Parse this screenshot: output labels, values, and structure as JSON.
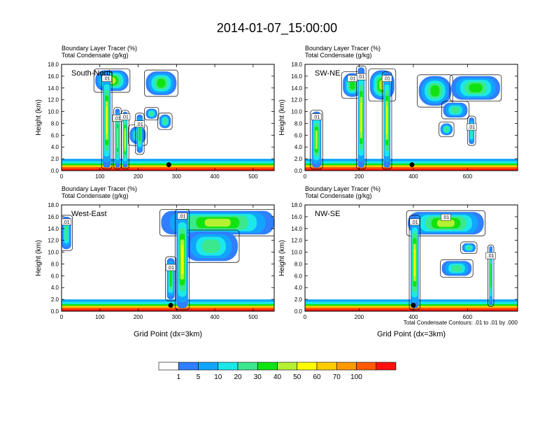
{
  "figure": {
    "title": "2014-01-07_15:00:00",
    "footnote": "Total Condensate Contours: .01 to .01 by .000",
    "label_bar_values": [
      "1",
      "5",
      "10",
      "20",
      "30",
      "40",
      "50",
      "60",
      "70",
      "100"
    ],
    "label_bar_colors": [
      "#ffffff",
      "#2f7fff",
      "#11a5ff",
      "#1ce8e8",
      "#3ce88e",
      "#11e311",
      "#b5f032",
      "#fffb00",
      "#ffcc00",
      "#ff9a00",
      "#ff5a00",
      "#ff1010"
    ]
  },
  "chart_data": [
    {
      "type": "heatmap",
      "panel_label": "South-North",
      "header_line1": "Boundary Layer Tracer    (%)",
      "header_line2": "Total Condensate    (g/kg)",
      "ylabel": "Height (km)",
      "xlabel": "",
      "xlim": [
        0,
        555
      ],
      "ylim": [
        0,
        18
      ],
      "xticks": [
        "0",
        "100",
        "200",
        "300",
        "400",
        "500"
      ],
      "yticks": [
        "0.0",
        "2.0",
        "4.0",
        "6.0",
        "8.0",
        "10.0",
        "12.0",
        "14.0",
        "16.0",
        "18.0"
      ],
      "contour_labels": [
        ".01",
        ".01",
        ".01",
        ".01"
      ],
      "marker_x": 280,
      "marker_y": 1.0,
      "columns": [
        {
          "x": [
            108,
            128
          ],
          "z": [
            0.5,
            16.5
          ],
          "level": 6
        },
        {
          "x": [
            140,
            152
          ],
          "z": [
            0.5,
            10.5
          ],
          "level": 5
        },
        {
          "x": [
            160,
            172
          ],
          "z": [
            0.5,
            10.0
          ],
          "level": 6
        },
        {
          "x": [
            196,
            212
          ],
          "z": [
            3.0,
            9.5
          ],
          "level": 4
        }
      ],
      "anvils": [
        {
          "x": [
            88,
            175
          ],
          "z": [
            13.5,
            17.0
          ],
          "level": 5
        },
        {
          "x": [
            220,
            300
          ],
          "z": [
            12.8,
            16.8
          ],
          "level": 4
        },
        {
          "x": [
            255,
            285
          ],
          "z": [
            7.2,
            9.5
          ],
          "level": 3
        },
        {
          "x": [
            220,
            250
          ],
          "z": [
            8.8,
            10.5
          ],
          "level": 3
        },
        {
          "x": [
            178,
            220
          ],
          "z": [
            4.5,
            7.5
          ],
          "level": 3
        }
      ]
    },
    {
      "type": "heatmap",
      "panel_label": "SW-NE",
      "header_line1": "Boundary Layer Tracer    (%)",
      "header_line2": "Total Condensate    (g/kg)",
      "ylabel": "Height (km)",
      "xlabel": "",
      "xlim": [
        0,
        785
      ],
      "ylim": [
        0,
        18
      ],
      "xticks": [
        "0",
        "200",
        "400",
        "600"
      ],
      "yticks": [
        "0.0",
        "2.0",
        "4.0",
        "6.0",
        "8.0",
        "10.0",
        "12.0",
        "14.0",
        "16.0",
        "18.0"
      ],
      "contour_labels": [
        ".01",
        ".01",
        ".01",
        ".01",
        ".01"
      ],
      "marker_x": 395,
      "marker_y": 1.0,
      "columns": [
        {
          "x": [
            25,
            60
          ],
          "z": [
            0.5,
            10.0
          ],
          "level": 5
        },
        {
          "x": [
            195,
            220
          ],
          "z": [
            0.5,
            17.5
          ],
          "level": 6
        },
        {
          "x": [
            290,
            315
          ],
          "z": [
            0.5,
            16.5
          ],
          "level": 6
        },
        {
          "x": [
            605,
            625
          ],
          "z": [
            4.5,
            9.0
          ],
          "level": 3
        }
      ],
      "anvils": [
        {
          "x": [
            140,
            210
          ],
          "z": [
            12.5,
            16.5
          ],
          "level": 4
        },
        {
          "x": [
            240,
            330
          ],
          "z": [
            12.0,
            17.0
          ],
          "level": 5
        },
        {
          "x": [
            420,
            540
          ],
          "z": [
            11.0,
            16.0
          ],
          "level": 4
        },
        {
          "x": [
            540,
            720
          ],
          "z": [
            12.0,
            16.0
          ],
          "level": 4
        },
        {
          "x": [
            510,
            600
          ],
          "z": [
            9.0,
            11.5
          ],
          "level": 3
        },
        {
          "x": [
            500,
            545
          ],
          "z": [
            6.0,
            8.0
          ],
          "level": 3
        }
      ]
    },
    {
      "type": "heatmap",
      "panel_label": "West-East",
      "header_line1": "Boundary Layer Tracer    (%)",
      "header_line2": "Total Condensate    (g/kg)",
      "ylabel": "Height (km)",
      "xlabel": "Grid Point (dx=3km)",
      "xlim": [
        0,
        555
      ],
      "ylim": [
        0,
        18
      ],
      "xticks": [
        "0",
        "100",
        "200",
        "300",
        "400",
        "500"
      ],
      "yticks": [
        "0.0",
        "2.0",
        "4.0",
        "6.0",
        "8.0",
        "10.0",
        "12.0",
        "14.0",
        "16.0",
        "18.0"
      ],
      "contour_labels": [
        ".01",
        ".01",
        ".01"
      ],
      "marker_x": 285,
      "marker_y": 1.0,
      "columns": [
        {
          "x": [
            300,
            330
          ],
          "z": [
            0.5,
            17.0
          ],
          "level": 6
        },
        {
          "x": [
            275,
            295
          ],
          "z": [
            2.0,
            9.0
          ],
          "level": 4
        },
        {
          "x": [
            0,
            25
          ],
          "z": [
            10.5,
            16.0
          ],
          "level": 3
        }
      ],
      "anvils": [
        {
          "x": [
            260,
            555
          ],
          "z": [
            13.0,
            17.0
          ],
          "level": 5
        },
        {
          "x": [
            320,
            460
          ],
          "z": [
            8.5,
            13.5
          ],
          "level": 3
        }
      ]
    },
    {
      "type": "heatmap",
      "panel_label": "NW-SE",
      "header_line1": "Boundary Layer Tracer    (%)",
      "header_line2": "Total Condensate    (g/kg)",
      "ylabel": "Height (km)",
      "xlabel": "Grid Point (dx=3km)",
      "xlim": [
        0,
        785
      ],
      "ylim": [
        0,
        18
      ],
      "xticks": [
        "0",
        "200",
        "400",
        "600"
      ],
      "yticks": [
        "0.0",
        "2.0",
        "4.0",
        "6.0",
        "8.0",
        "10.0",
        "12.0",
        "14.0",
        "16.0",
        "18.0"
      ],
      "contour_labels": [
        ".01",
        ".01",
        ".01"
      ],
      "marker_x": 400,
      "marker_y": 1.0,
      "columns": [
        {
          "x": [
            390,
            420
          ],
          "z": [
            0.5,
            16.0
          ],
          "level": 6
        },
        {
          "x": [
            680,
            692
          ],
          "z": [
            1.0,
            11.0
          ],
          "level": 4
        }
      ],
      "anvils": [
        {
          "x": [
            380,
            660
          ],
          "z": [
            13.0,
            16.8
          ],
          "level": 5
        },
        {
          "x": [
            505,
            615
          ],
          "z": [
            6.0,
            8.5
          ],
          "level": 3
        },
        {
          "x": [
            580,
            630
          ],
          "z": [
            10.0,
            11.5
          ],
          "level": 3
        }
      ]
    }
  ]
}
